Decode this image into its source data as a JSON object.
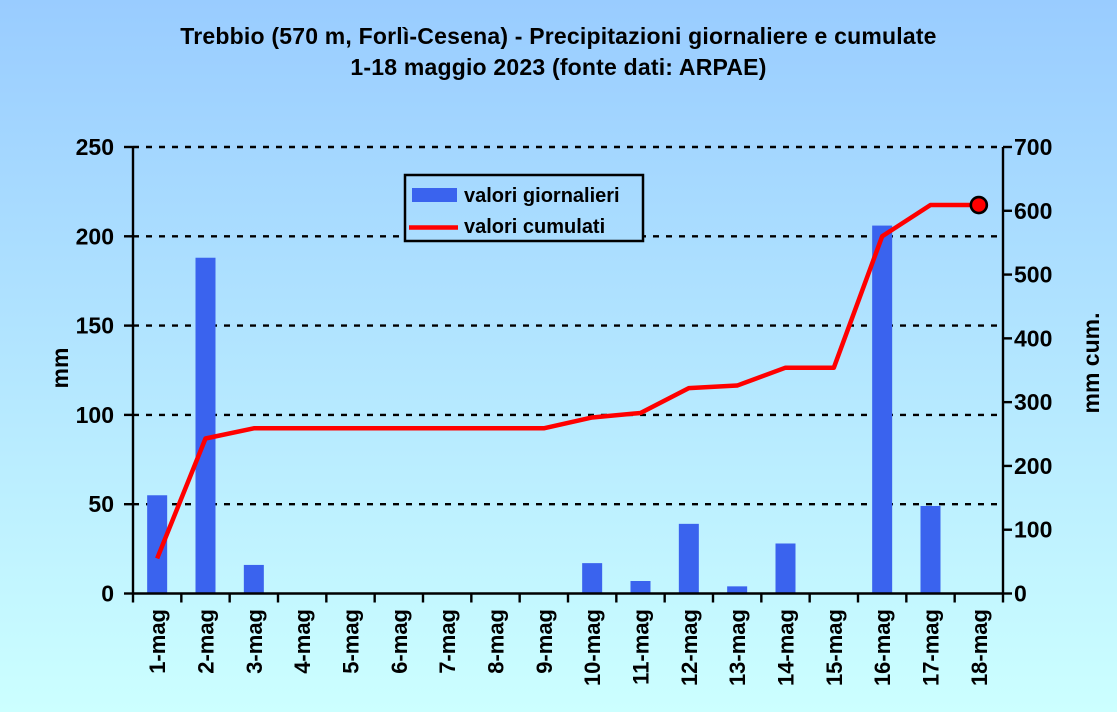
{
  "colors": {
    "bg_top": "#99CCFF",
    "bg_bottom": "#CCFFFF",
    "bar": "#3A63EE",
    "line": "#FF0000",
    "marker_fill": "#FF0000",
    "marker_edge": "#000000",
    "grid": "#000000",
    "axis": "#000000",
    "text": "#000000",
    "legend_border": "#000000"
  },
  "chart_data": {
    "type": "combo",
    "title_line1": "Trebbio (570 m, Forlì-Cesena) - Precipitazioni giornaliere e cumulate",
    "title_line2": "1-18 maggio 2023 (fonte dati: ARPAE)",
    "categories": [
      "1-mag",
      "2-mag",
      "3-mag",
      "4-mag",
      "5-mag",
      "6-mag",
      "7-mag",
      "8-mag",
      "9-mag",
      "10-mag",
      "11-mag",
      "12-mag",
      "13-mag",
      "14-mag",
      "15-mag",
      "16-mag",
      "17-mag",
      "18-mag"
    ],
    "series": [
      {
        "name": "valori giornalieri",
        "type": "bar",
        "y_axis": "left",
        "color": "#3A63EE",
        "values": [
          55,
          188,
          16,
          0,
          0,
          0,
          0,
          0,
          0,
          17,
          7,
          39,
          4,
          28,
          0,
          206,
          49,
          0
        ]
      },
      {
        "name": "valori cumulati",
        "type": "line",
        "y_axis": "right",
        "color": "#FF0000",
        "end_marker": true,
        "values": [
          55,
          243,
          259,
          259,
          259,
          259,
          259,
          259,
          259,
          276,
          283,
          322,
          326,
          354,
          354,
          560,
          609,
          609
        ]
      }
    ],
    "left_axis": {
      "label": "mm",
      "min": 0,
      "max": 250,
      "step": 50,
      "ticks": [
        0,
        50,
        100,
        150,
        200,
        250
      ]
    },
    "right_axis": {
      "label": "mm cum.",
      "min": 0,
      "max": 700,
      "step": 100,
      "ticks": [
        0,
        100,
        200,
        300,
        400,
        500,
        600,
        700
      ]
    },
    "gridlines": {
      "style": "dashed",
      "at_left_values": [
        50,
        100,
        150,
        200,
        250
      ]
    },
    "x_tick_label_rotation_deg": -90,
    "legend_position": "top-center-inside"
  }
}
